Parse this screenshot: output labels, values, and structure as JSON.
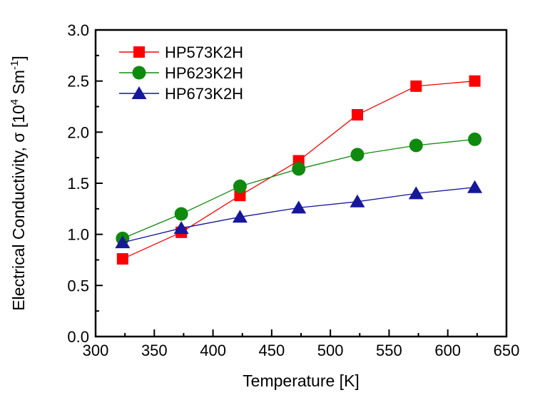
{
  "chart_data": {
    "type": "line",
    "title": "",
    "xlabel": "Temperature [K]",
    "ylabel_parts": [
      {
        "text": "Electrical Conductivity, σ [10",
        "sup": false
      },
      {
        "text": "4",
        "sup": true
      },
      {
        "text": " Sm",
        "sup": false
      },
      {
        "text": "-1",
        "sup": true
      },
      {
        "text": "]",
        "sup": false
      }
    ],
    "x": [
      323,
      373,
      423,
      473,
      523,
      573,
      623
    ],
    "series": [
      {
        "name": "HP573K2H",
        "marker": "square",
        "color": "#ff0000",
        "values": [
          0.76,
          1.02,
          1.38,
          1.72,
          2.17,
          2.45,
          2.5
        ]
      },
      {
        "name": "HP623K2H",
        "marker": "circle",
        "color": "#0f8a0f",
        "values": [
          0.96,
          1.2,
          1.47,
          1.64,
          1.78,
          1.87,
          1.93
        ]
      },
      {
        "name": "HP673K2H",
        "marker": "triangle",
        "color": "#17179c",
        "values": [
          0.92,
          1.06,
          1.17,
          1.26,
          1.32,
          1.4,
          1.46
        ]
      }
    ],
    "xlim": [
      300,
      650
    ],
    "ylim": [
      0.0,
      3.0
    ],
    "x_major_step": 50,
    "x_minor_step": 25,
    "y_major_step": 0.5,
    "y_minor_step": 0.25,
    "x_tick_labels": [
      "300",
      "350",
      "400",
      "450",
      "500",
      "550",
      "600",
      "650"
    ],
    "y_tick_labels": [
      "0.0",
      "0.5",
      "1.0",
      "1.5",
      "2.0",
      "2.5",
      "3.0"
    ],
    "grid": false,
    "legend_position": "top-left-inside",
    "frame_color": "#000000",
    "background": "#ffffff"
  }
}
